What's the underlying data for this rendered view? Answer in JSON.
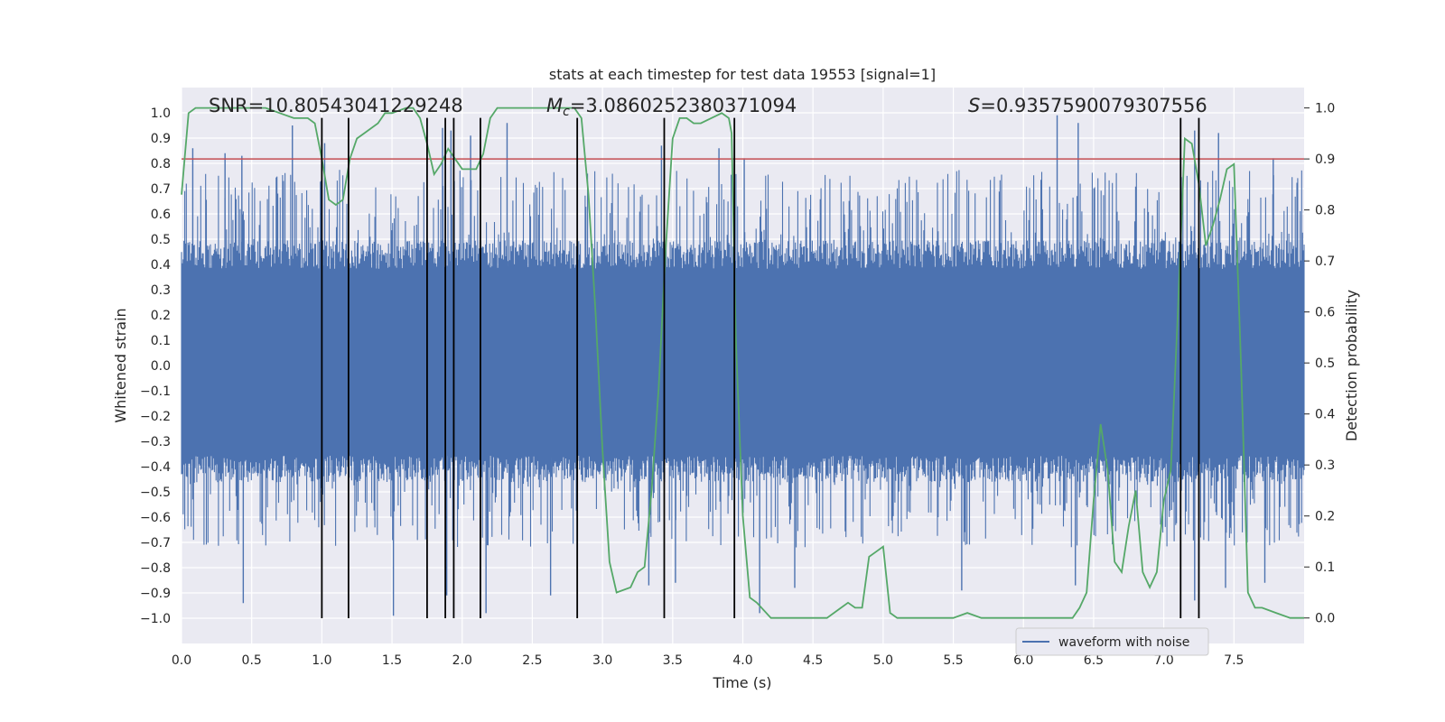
{
  "chart_data": {
    "type": "line",
    "title": "stats at each timestep for test data 19553 [signal=1]",
    "xlabel": "Time (s)",
    "ylabel": "Whitened strain",
    "y2label": "Detection probability",
    "xlim": [
      0.0,
      8.0
    ],
    "ylim": [
      -1.1,
      1.1
    ],
    "y2lim": [
      -0.05,
      1.04
    ],
    "x_ticks": [
      "0.0",
      "0.5",
      "1.0",
      "1.5",
      "2.0",
      "2.5",
      "3.0",
      "3.5",
      "4.0",
      "4.5",
      "5.0",
      "5.5",
      "6.0",
      "6.5",
      "7.0",
      "7.5"
    ],
    "y_ticks": [
      "1.0",
      "0.9",
      "0.8",
      "0.7",
      "0.6",
      "0.5",
      "0.4",
      "0.3",
      "0.2",
      "0.1",
      "0.0",
      "-0.1",
      "-0.2",
      "-0.3",
      "-0.4",
      "-0.5",
      "-0.6",
      "-0.7",
      "-0.8",
      "-0.9",
      "-1.0"
    ],
    "y2_ticks": [
      "1.0",
      "0.9",
      "0.8",
      "0.7",
      "0.6",
      "0.5",
      "0.4",
      "0.3",
      "0.2",
      "0.1",
      "0.0"
    ],
    "annotations": {
      "snr": "SNR=10.80543041229248",
      "mc_symbol": "M",
      "mc_sub": "c",
      "mc_value": "=3.0860252380371094",
      "s_symbol": "S",
      "s_value": "=0.9357590079307556"
    },
    "threshold": {
      "value": 0.9,
      "axis": "y2",
      "color": "#c44e52"
    },
    "vertical_lines": [
      1.0,
      1.19,
      1.75,
      1.88,
      1.94,
      2.13,
      2.82,
      3.44,
      3.94,
      7.12,
      7.25
    ],
    "vertical_line_range": [
      -1.0,
      0.98
    ],
    "series": [
      {
        "name": "waveform with noise",
        "axis": "y",
        "color": "#4c72b0",
        "envelope": {
          "typical_upper": 0.45,
          "typical_lower": -0.42
        },
        "peaks": [
          {
            "x": 0.08,
            "y": 0.86
          },
          {
            "x": 0.31,
            "y": 0.84
          },
          {
            "x": 0.43,
            "y": 0.83
          },
          {
            "x": 0.79,
            "y": 0.95
          },
          {
            "x": 1.02,
            "y": 0.88
          },
          {
            "x": 1.19,
            "y": 0.82
          },
          {
            "x": 1.86,
            "y": 0.94
          },
          {
            "x": 1.92,
            "y": 0.93
          },
          {
            "x": 2.06,
            "y": 0.91
          },
          {
            "x": 2.32,
            "y": 0.96
          },
          {
            "x": 3.42,
            "y": 0.87
          },
          {
            "x": 3.83,
            "y": 0.86
          },
          {
            "x": 4.01,
            "y": 0.82
          },
          {
            "x": 6.24,
            "y": 0.99
          },
          {
            "x": 6.39,
            "y": 0.96
          },
          {
            "x": 7.22,
            "y": 0.93
          },
          {
            "x": 7.39,
            "y": 0.92
          },
          {
            "x": 7.78,
            "y": 0.82
          }
        ],
        "troughs": [
          {
            "x": 0.44,
            "y": -0.94
          },
          {
            "x": 1.51,
            "y": -0.99
          },
          {
            "x": 1.89,
            "y": -0.91
          },
          {
            "x": 2.17,
            "y": -0.98
          },
          {
            "x": 2.63,
            "y": -0.91
          },
          {
            "x": 2.82,
            "y": -0.89
          },
          {
            "x": 3.33,
            "y": -0.87
          },
          {
            "x": 3.52,
            "y": -0.86
          },
          {
            "x": 4.12,
            "y": -0.98
          },
          {
            "x": 4.37,
            "y": -0.88
          },
          {
            "x": 5.56,
            "y": -0.89
          },
          {
            "x": 6.37,
            "y": -0.87
          },
          {
            "x": 7.22,
            "y": -0.93
          },
          {
            "x": 7.44,
            "y": -0.88
          },
          {
            "x": 7.72,
            "y": -0.86
          }
        ]
      },
      {
        "name": "detection probability",
        "axis": "y2",
        "color": "#55a868",
        "points": [
          [
            0.0,
            0.83
          ],
          [
            0.05,
            0.99
          ],
          [
            0.1,
            1.0
          ],
          [
            0.2,
            1.0
          ],
          [
            0.4,
            1.0
          ],
          [
            0.6,
            1.0
          ],
          [
            0.7,
            0.99
          ],
          [
            0.8,
            0.98
          ],
          [
            0.9,
            0.98
          ],
          [
            0.95,
            0.97
          ],
          [
            1.0,
            0.9
          ],
          [
            1.05,
            0.82
          ],
          [
            1.1,
            0.81
          ],
          [
            1.15,
            0.82
          ],
          [
            1.2,
            0.9
          ],
          [
            1.25,
            0.94
          ],
          [
            1.3,
            0.95
          ],
          [
            1.4,
            0.97
          ],
          [
            1.45,
            0.99
          ],
          [
            1.5,
            0.99
          ],
          [
            1.6,
            1.0
          ],
          [
            1.65,
            1.0
          ],
          [
            1.7,
            0.98
          ],
          [
            1.75,
            0.93
          ],
          [
            1.8,
            0.87
          ],
          [
            1.85,
            0.89
          ],
          [
            1.9,
            0.92
          ],
          [
            1.95,
            0.9
          ],
          [
            2.0,
            0.88
          ],
          [
            2.1,
            0.88
          ],
          [
            2.15,
            0.91
          ],
          [
            2.2,
            0.98
          ],
          [
            2.25,
            1.0
          ],
          [
            2.4,
            1.0
          ],
          [
            2.8,
            1.0
          ],
          [
            2.85,
            0.98
          ],
          [
            2.9,
            0.83
          ],
          [
            2.95,
            0.6
          ],
          [
            3.0,
            0.33
          ],
          [
            3.05,
            0.11
          ],
          [
            3.1,
            0.05
          ],
          [
            3.2,
            0.06
          ],
          [
            3.25,
            0.09
          ],
          [
            3.3,
            0.1
          ],
          [
            3.35,
            0.25
          ],
          [
            3.4,
            0.45
          ],
          [
            3.45,
            0.72
          ],
          [
            3.5,
            0.94
          ],
          [
            3.55,
            0.98
          ],
          [
            3.6,
            0.98
          ],
          [
            3.65,
            0.97
          ],
          [
            3.7,
            0.97
          ],
          [
            3.85,
            0.99
          ],
          [
            3.9,
            0.98
          ],
          [
            3.92,
            0.95
          ],
          [
            3.95,
            0.55
          ],
          [
            4.0,
            0.2
          ],
          [
            4.05,
            0.04
          ],
          [
            4.1,
            0.03
          ],
          [
            4.2,
            0.0
          ],
          [
            4.3,
            0.0
          ],
          [
            4.4,
            0.0
          ],
          [
            4.5,
            0.0
          ],
          [
            4.6,
            0.0
          ],
          [
            4.7,
            0.02
          ],
          [
            4.75,
            0.03
          ],
          [
            4.8,
            0.02
          ],
          [
            4.85,
            0.02
          ],
          [
            4.9,
            0.12
          ],
          [
            4.95,
            0.13
          ],
          [
            5.0,
            0.14
          ],
          [
            5.05,
            0.01
          ],
          [
            5.1,
            0.0
          ],
          [
            5.3,
            0.0
          ],
          [
            5.5,
            0.0
          ],
          [
            5.6,
            0.01
          ],
          [
            5.7,
            0.0
          ],
          [
            6.0,
            0.0
          ],
          [
            6.1,
            0.0
          ],
          [
            6.3,
            0.0
          ],
          [
            6.35,
            0.0
          ],
          [
            6.4,
            0.02
          ],
          [
            6.45,
            0.05
          ],
          [
            6.5,
            0.23
          ],
          [
            6.55,
            0.38
          ],
          [
            6.6,
            0.29
          ],
          [
            6.65,
            0.11
          ],
          [
            6.7,
            0.09
          ],
          [
            6.75,
            0.18
          ],
          [
            6.8,
            0.25
          ],
          [
            6.85,
            0.09
          ],
          [
            6.9,
            0.06
          ],
          [
            6.95,
            0.09
          ],
          [
            7.0,
            0.23
          ],
          [
            7.05,
            0.29
          ],
          [
            7.1,
            0.6
          ],
          [
            7.15,
            0.94
          ],
          [
            7.2,
            0.93
          ],
          [
            7.25,
            0.85
          ],
          [
            7.3,
            0.73
          ],
          [
            7.35,
            0.77
          ],
          [
            7.4,
            0.82
          ],
          [
            7.45,
            0.88
          ],
          [
            7.5,
            0.89
          ],
          [
            7.55,
            0.5
          ],
          [
            7.6,
            0.05
          ],
          [
            7.65,
            0.02
          ],
          [
            7.7,
            0.02
          ],
          [
            7.8,
            0.01
          ],
          [
            7.9,
            0.0
          ],
          [
            7.95,
            0.0
          ],
          [
            8.0,
            0.0
          ]
        ]
      }
    ],
    "legend": {
      "entries": [
        "waveform with noise"
      ],
      "placement": "bottom-right"
    }
  }
}
